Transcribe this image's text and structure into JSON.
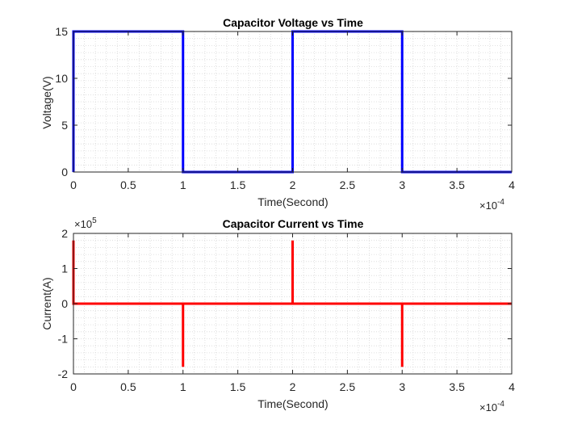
{
  "chart_data": [
    {
      "type": "line",
      "title": "Capacitor Voltage vs Time",
      "xlabel": "Time(Second)",
      "ylabel": "Voltage(V)",
      "xlim": [
        0,
        0.0004
      ],
      "ylim": [
        0,
        15
      ],
      "x_ticks": [
        0,
        0.5,
        1,
        1.5,
        2,
        2.5,
        3,
        3.5,
        4
      ],
      "x_tick_labels": [
        "0",
        "0.5",
        "1",
        "1.5",
        "2",
        "2.5",
        "3",
        "3.5",
        "4"
      ],
      "y_ticks": [
        0,
        5,
        10,
        15
      ],
      "y_tick_labels": [
        "0",
        "5",
        "10",
        "15"
      ],
      "x_multiplier_base": "×10",
      "x_multiplier_exp": "-4",
      "grid": "minor",
      "series": [
        {
          "color": "#0000ff",
          "x": [
            0,
            0,
            0.0001,
            0.0001,
            0.0002,
            0.0002,
            0.0003,
            0.0003,
            0.0004
          ],
          "y": [
            0,
            15,
            15,
            0,
            0,
            15,
            15,
            0,
            0
          ]
        }
      ]
    },
    {
      "type": "line",
      "title": "Capacitor Current vs Time",
      "xlabel": "Time(Second)",
      "ylabel": "Current(A)",
      "xlim": [
        0,
        0.0004
      ],
      "ylim": [
        -200000,
        200000
      ],
      "x_ticks": [
        0,
        0.5,
        1,
        1.5,
        2,
        2.5,
        3,
        3.5,
        4
      ],
      "x_tick_labels": [
        "0",
        "0.5",
        "1",
        "1.5",
        "2",
        "2.5",
        "3",
        "3.5",
        "4"
      ],
      "y_ticks": [
        -2,
        -1,
        0,
        1,
        2
      ],
      "y_tick_labels": [
        "-2",
        "-1",
        "0",
        "1",
        "2"
      ],
      "x_multiplier_base": "×10",
      "x_multiplier_exp": "-4",
      "y_multiplier_base": "×10",
      "y_multiplier_exp": "5",
      "grid": "minor",
      "series": [
        {
          "color": "#ff0000",
          "x": [
            0,
            0,
            0,
            0.0001,
            0.0001,
            0.0001,
            0.0002,
            0.0002,
            0.0002,
            0.0003,
            0.0003,
            0.0003,
            0.0004
          ],
          "y": [
            180000,
            0,
            0,
            0,
            -180000,
            0,
            0,
            180000,
            0,
            0,
            -180000,
            0,
            0
          ]
        }
      ]
    }
  ]
}
